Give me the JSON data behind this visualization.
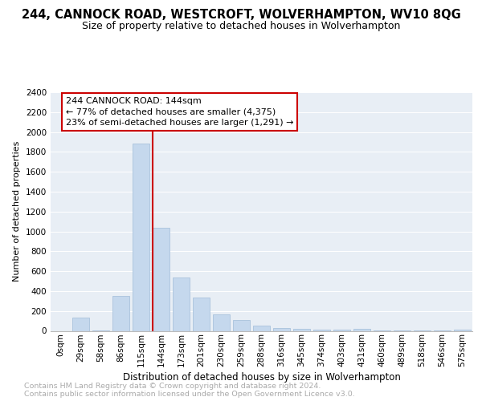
{
  "title1": "244, CANNOCK ROAD, WESTCROFT, WOLVERHAMPTON, WV10 8QG",
  "title2": "Size of property relative to detached houses in Wolverhampton",
  "xlabel": "Distribution of detached houses by size in Wolverhampton",
  "ylabel": "Number of detached properties",
  "categories": [
    "0sqm",
    "29sqm",
    "58sqm",
    "86sqm",
    "115sqm",
    "144sqm",
    "173sqm",
    "201sqm",
    "230sqm",
    "259sqm",
    "288sqm",
    "316sqm",
    "345sqm",
    "374sqm",
    "403sqm",
    "431sqm",
    "460sqm",
    "489sqm",
    "518sqm",
    "546sqm",
    "575sqm"
  ],
  "values": [
    0,
    130,
    5,
    350,
    1880,
    1040,
    540,
    335,
    165,
    110,
    55,
    30,
    20,
    15,
    10,
    20,
    3,
    3,
    2,
    2,
    15
  ],
  "bar_color": "#c5d8ed",
  "bar_edge_color": "#a0bcd8",
  "vline_color": "#cc0000",
  "vline_index": 5,
  "annotation_text": "244 CANNOCK ROAD: 144sqm\n← 77% of detached houses are smaller (4,375)\n23% of semi-detached houses are larger (1,291) →",
  "annotation_box_edgecolor": "#cc0000",
  "ylim_max": 2400,
  "ytick_step": 200,
  "background_color": "#e8eef5",
  "footer_text": "Contains HM Land Registry data © Crown copyright and database right 2024.\nContains public sector information licensed under the Open Government Licence v3.0.",
  "title1_fontsize": 10.5,
  "title2_fontsize": 9,
  "xlabel_fontsize": 8.5,
  "ylabel_fontsize": 8,
  "tick_fontsize": 7.5,
  "annotation_fontsize": 8,
  "footer_fontsize": 6.8,
  "bar_width": 0.85
}
